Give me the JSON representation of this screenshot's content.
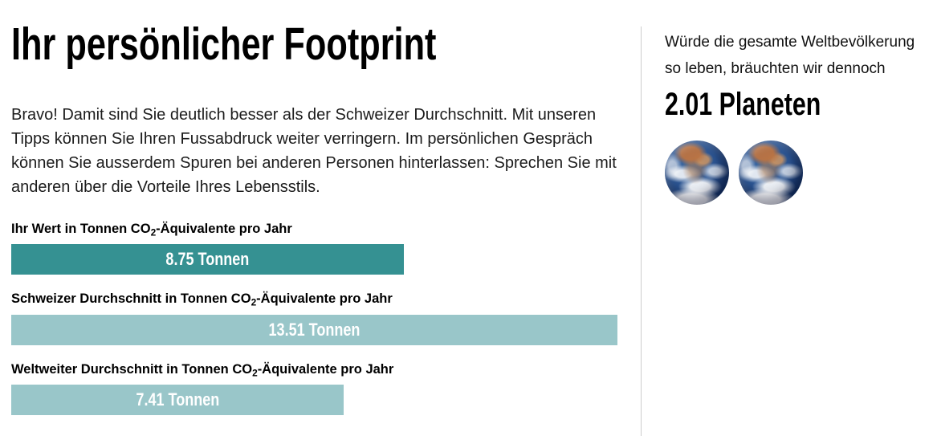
{
  "page": {
    "title": "Ihr persönlicher Footprint",
    "intro": "Bravo! Damit sind Sie deutlich besser als der Schweizer Durchschnitt. Mit unseren Tipps können Sie Ihren Fussabdruck weiter verringern. Im persönlichen Gespräch können Sie ausserdem Spuren bei anderen Personen hinterlassen: Sprechen Sie mit anderen über die Vorteile Ihres Lebensstils."
  },
  "chart_data": {
    "type": "bar",
    "orientation": "horizontal",
    "unit": "Tonnen CO2-Äquivalente pro Jahr",
    "categories": [
      "Ihr Wert in Tonnen CO2-Äquivalente pro Jahr",
      "Schweizer Durchschnitt in Tonnen CO2-Äquivalente pro Jahr",
      "Weltweiter Durchschnitt in Tonnen CO2-Äquivalente pro Jahr"
    ],
    "values": [
      8.75,
      13.51,
      7.41
    ],
    "data_labels": [
      "8.75 Tonnen",
      "13.51 Tonnen",
      "7.41 Tonnen"
    ],
    "xlim": [
      0,
      13.51
    ],
    "bar_colors": [
      "#359192",
      "#99C6C9",
      "#99C6C9"
    ],
    "grid": "off",
    "legend": "none"
  },
  "bars": [
    {
      "label_pre": "Ihr Wert in Tonnen CO",
      "label_sub": "2",
      "label_post": "-Äquivalente pro Jahr",
      "value": 8.75,
      "value_label": "8.75 Tonnen",
      "width": "64.77%",
      "color": "#359192"
    },
    {
      "label_pre": "Schweizer Durchschnitt in Tonnen CO",
      "label_sub": "2",
      "label_post": "-Äquivalente pro Jahr",
      "value": 13.51,
      "value_label": "13.51 Tonnen",
      "width": "100%",
      "color": "#99C6C9"
    },
    {
      "label_pre": "Weltweiter Durchschnitt in Tonnen CO",
      "label_sub": "2",
      "label_post": "-Äquivalente pro Jahr",
      "value": 7.41,
      "value_label": "7.41 Tonnen",
      "width": "54.85%",
      "color": "#99C6C9"
    }
  ],
  "sidebar": {
    "note": "Würde die gesamte Weltbevölkerung so leben, bräuchten wir dennoch",
    "planets_label": "2.01 Planeten",
    "planets_value": 2.01,
    "earth_image_count": 2
  }
}
